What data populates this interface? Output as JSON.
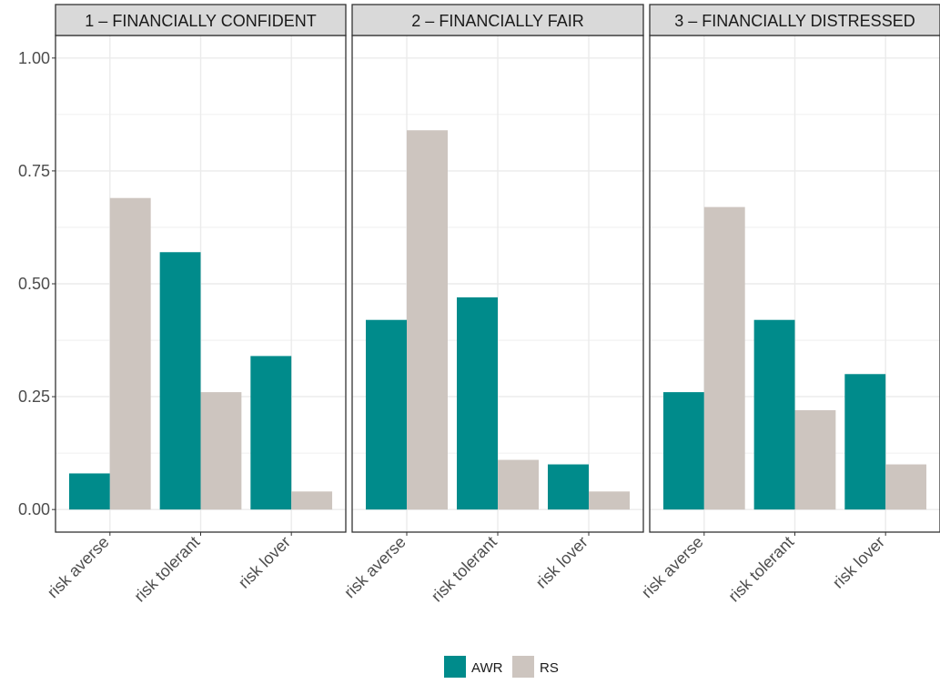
{
  "chart_data": {
    "type": "bar",
    "facets": [
      {
        "title": "1 – FINANCIALLY CONFIDENT",
        "categories": [
          "risk averse",
          "risk tolerant",
          "risk lover"
        ],
        "series": [
          {
            "name": "AWR",
            "values": [
              0.08,
              0.57,
              0.34
            ]
          },
          {
            "name": "RS",
            "values": [
              0.69,
              0.26,
              0.04
            ]
          }
        ]
      },
      {
        "title": "2 – FINANCIALLY FAIR",
        "categories": [
          "risk averse",
          "risk tolerant",
          "risk lover"
        ],
        "series": [
          {
            "name": "AWR",
            "values": [
              0.42,
              0.47,
              0.1
            ]
          },
          {
            "name": "RS",
            "values": [
              0.84,
              0.11,
              0.04
            ]
          }
        ]
      },
      {
        "title": "3 – FINANCIALLY DISTRESSED",
        "categories": [
          "risk averse",
          "risk tolerant",
          "risk lover"
        ],
        "series": [
          {
            "name": "AWR",
            "values": [
              0.26,
              0.42,
              0.3
            ]
          },
          {
            "name": "RS",
            "values": [
              0.67,
              0.22,
              0.1
            ]
          }
        ]
      }
    ],
    "y_ticks": [
      "0.00",
      "0.25",
      "0.50",
      "0.75",
      "1.00"
    ],
    "y_tick_values": [
      0,
      0.25,
      0.5,
      0.75,
      1.0
    ],
    "ylim": [
      -0.05,
      1.05
    ],
    "xlabel": "",
    "ylabel": "",
    "grid": true,
    "legend": {
      "position": "bottom",
      "items": [
        {
          "label": "AWR",
          "color": "#008b8b"
        },
        {
          "label": "RS",
          "color": "#cdc5bf"
        }
      ]
    },
    "colors": {
      "AWR": "#008b8b",
      "RS": "#cdc5bf",
      "strip": "#d9d9d9",
      "grid": "#ebebeb"
    }
  }
}
